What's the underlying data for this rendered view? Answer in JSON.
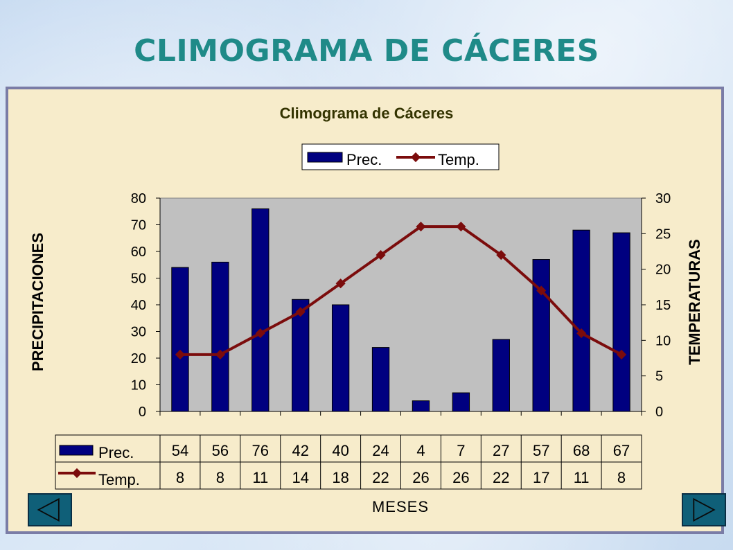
{
  "page": {
    "title": "CLIMOGRAMA DE CÁCERES"
  },
  "colors": {
    "bar": "#000080",
    "line": "#7b0c0c",
    "plot_bg": "#c0c0c0",
    "title": "#1f8a88",
    "chart_title": "#333300"
  },
  "chart_data": {
    "type": "bar",
    "title": "Climograma de Cáceres",
    "xlabel": "MESES",
    "ylabel": "PRECIPITACIONES",
    "y2label": "TEMPERATURAS",
    "categories": [
      "",
      "",
      "",
      "",
      "",
      "",
      "",
      "",
      "",
      "",
      "",
      ""
    ],
    "ylim": [
      0,
      80
    ],
    "y2lim": [
      0,
      30
    ],
    "yticks": [
      0,
      10,
      20,
      30,
      40,
      50,
      60,
      70,
      80
    ],
    "y2ticks": [
      0,
      5,
      10,
      15,
      20,
      25,
      30
    ],
    "legend_position": "top",
    "grid": false,
    "data_table": true,
    "series": [
      {
        "name": "Prec.",
        "type": "bar",
        "axis": "left",
        "values": [
          54,
          56,
          76,
          42,
          40,
          24,
          4,
          7,
          27,
          57,
          68,
          67
        ]
      },
      {
        "name": "Temp.",
        "type": "line",
        "axis": "right",
        "marker": "diamond",
        "values": [
          8,
          8,
          11,
          14,
          18,
          22,
          26,
          26,
          22,
          17,
          11,
          8
        ]
      }
    ]
  },
  "nav": {
    "prev_icon": "triangle-left-icon",
    "next_icon": "triangle-right-icon"
  }
}
